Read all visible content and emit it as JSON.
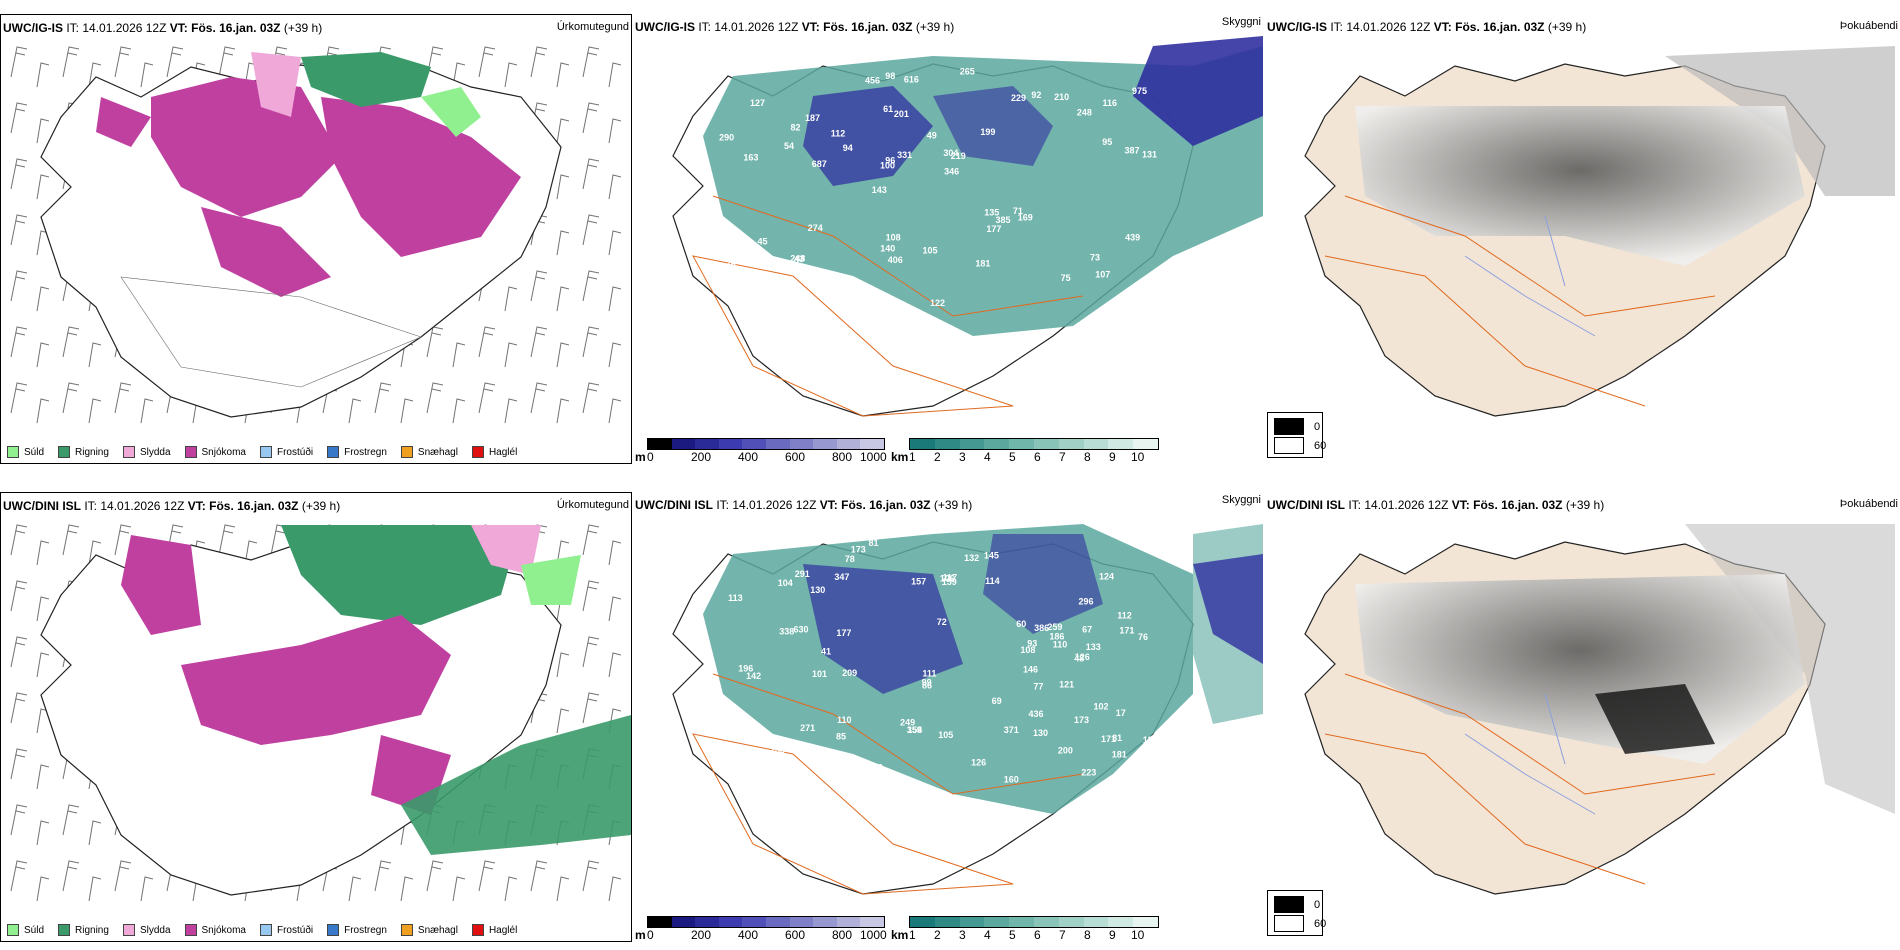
{
  "rows": [
    {
      "model": "UWC/IG-IS",
      "panels": {
        "precip": {
          "model": "UWC/IG-IS",
          "it_label": "IT:",
          "it_value": "14.01.2026 12Z",
          "vt_label": "VT:",
          "vt_value": "Fös. 16.jan. 03Z",
          "lead": "(+39 h)",
          "type": "Úrkomutegund"
        },
        "ceiling": {
          "model": "UWC/IG-IS",
          "it_label": "IT:",
          "it_value": "14.01.2026 12Z",
          "vt_label": "VT:",
          "vt_value": "Fös. 16.jan. 03Z",
          "lead": "(+39 h)",
          "type": "Skyggni"
        },
        "fog": {
          "model": "UWC/IG-IS",
          "it_label": "IT:",
          "it_value": "14.01.2026 12Z",
          "vt_label": "VT:",
          "vt_value": "Fös. 16.jan. 03Z",
          "lead": "(+39 h)",
          "type": "Þokuábendi"
        }
      },
      "ceiling_labels": [
        "107",
        "163",
        "116",
        "143",
        "199",
        "63",
        "61",
        "49",
        "45",
        "94",
        "75",
        "43",
        "201",
        "219",
        "169",
        "127",
        "98",
        "131",
        "135",
        "95",
        "100",
        "140",
        "96",
        "187",
        "229",
        "274",
        "75",
        "73",
        "71",
        "122",
        "112",
        "54",
        "177",
        "182",
        "387",
        "304",
        "280",
        "406",
        "346",
        "388",
        "248",
        "975",
        "385",
        "181",
        "248",
        "365",
        "10",
        "105",
        "210",
        "616",
        "687",
        "290",
        "82",
        "92",
        "387",
        "265",
        "456",
        "331",
        "439",
        "108"
      ]
    },
    {
      "model": "UWC/DINI ISL",
      "panels": {
        "precip": {
          "model": "UWC/DINI ISL",
          "it_label": "IT:",
          "it_value": "14.01.2026 12Z",
          "vt_label": "VT:",
          "vt_value": "Fös. 16.jan. 03Z",
          "lead": "(+39 h)",
          "type": "Úrkomutegund"
        },
        "ceiling": {
          "model": "UWC/DINI ISL",
          "it_label": "IT:",
          "it_value": "14.01.2026 12Z",
          "vt_label": "VT:",
          "vt_value": "Fös. 16.jan. 03Z",
          "lead": "(+39 h)",
          "type": "Skyggni"
        },
        "fog": {
          "model": "UWC/DINI ISL",
          "it_label": "IT:",
          "it_value": "14.01.2026 12Z",
          "vt_label": "VT:",
          "vt_value": "Fös. 16.jan. 03Z",
          "lead": "(+39 h)",
          "type": "Þokuábendi"
        }
      },
      "ceiling_labels": [
        "173",
        "112",
        "81",
        "72",
        "164",
        "78",
        "67",
        "85",
        "124",
        "630",
        "171",
        "113",
        "48",
        "108",
        "106",
        "104",
        "171",
        "347",
        "154",
        "133",
        "196",
        "142",
        "126",
        "108",
        "108",
        "249",
        "132",
        "114",
        "60",
        "118",
        "101",
        "130",
        "120",
        "99",
        "102",
        "200",
        "93",
        "157",
        "223",
        "209",
        "121",
        "110",
        "106",
        "41",
        "17",
        "77",
        "288",
        "145",
        "177",
        "186",
        "271",
        "86",
        "117",
        "76",
        "371",
        "146",
        "173",
        "291",
        "160",
        "159",
        "81",
        "436",
        "134",
        "105",
        "130",
        "181",
        "169",
        "111",
        "259",
        "338",
        "296",
        "126",
        "110",
        "69",
        "359",
        "386"
      ]
    }
  ],
  "precip_legend": [
    {
      "label": "Súld",
      "color": "#90f090"
    },
    {
      "label": "Rigning",
      "color": "#3a9a6a"
    },
    {
      "label": "Slydda",
      "color": "#f0a8d8"
    },
    {
      "label": "Snjókoma",
      "color": "#c040a0"
    },
    {
      "label": "Frostúði",
      "color": "#98c8f0"
    },
    {
      "label": "Frostregn",
      "color": "#3878c8"
    },
    {
      "label": "Snæhagl",
      "color": "#f0a020"
    },
    {
      "label": "Haglél",
      "color": "#e01010"
    }
  ],
  "ceiling_cbar": {
    "unit": "m",
    "ticks": [
      "0",
      "200",
      "400",
      "600",
      "800",
      "1000"
    ],
    "colors": [
      "#000000",
      "#1a1a80",
      "#2a2a98",
      "#3c3cb0",
      "#5050b8",
      "#6a6ac0",
      "#8080c8",
      "#9898d0",
      "#b0b0d8",
      "#c8c8e4"
    ]
  },
  "visibility_cbar": {
    "unit": "km",
    "ticks": [
      "1",
      "2",
      "3",
      "4",
      "5",
      "6",
      "7",
      "8",
      "9",
      "10"
    ],
    "colors": [
      "#1a7a7a",
      "#2f8a86",
      "#449a92",
      "#5aa89e",
      "#70b6aa",
      "#88c4b8",
      "#a0d0c6",
      "#b8ddd4",
      "#d0e9e2",
      "#e8f4f0"
    ]
  },
  "fog_legend": [
    {
      "value": "0",
      "color": "#000000"
    },
    {
      "value": "60",
      "color": "#ffffff"
    }
  ],
  "colors": {
    "land_fill": "#f3e5d5",
    "road": "#e06a20",
    "coast": "#222222",
    "snow": "#c040a0",
    "rain": "#3a9a6a",
    "drizzle": "#90f090",
    "sleet": "#f0a8d8",
    "teal": "#5aa89e",
    "blue": "#3030a0"
  }
}
